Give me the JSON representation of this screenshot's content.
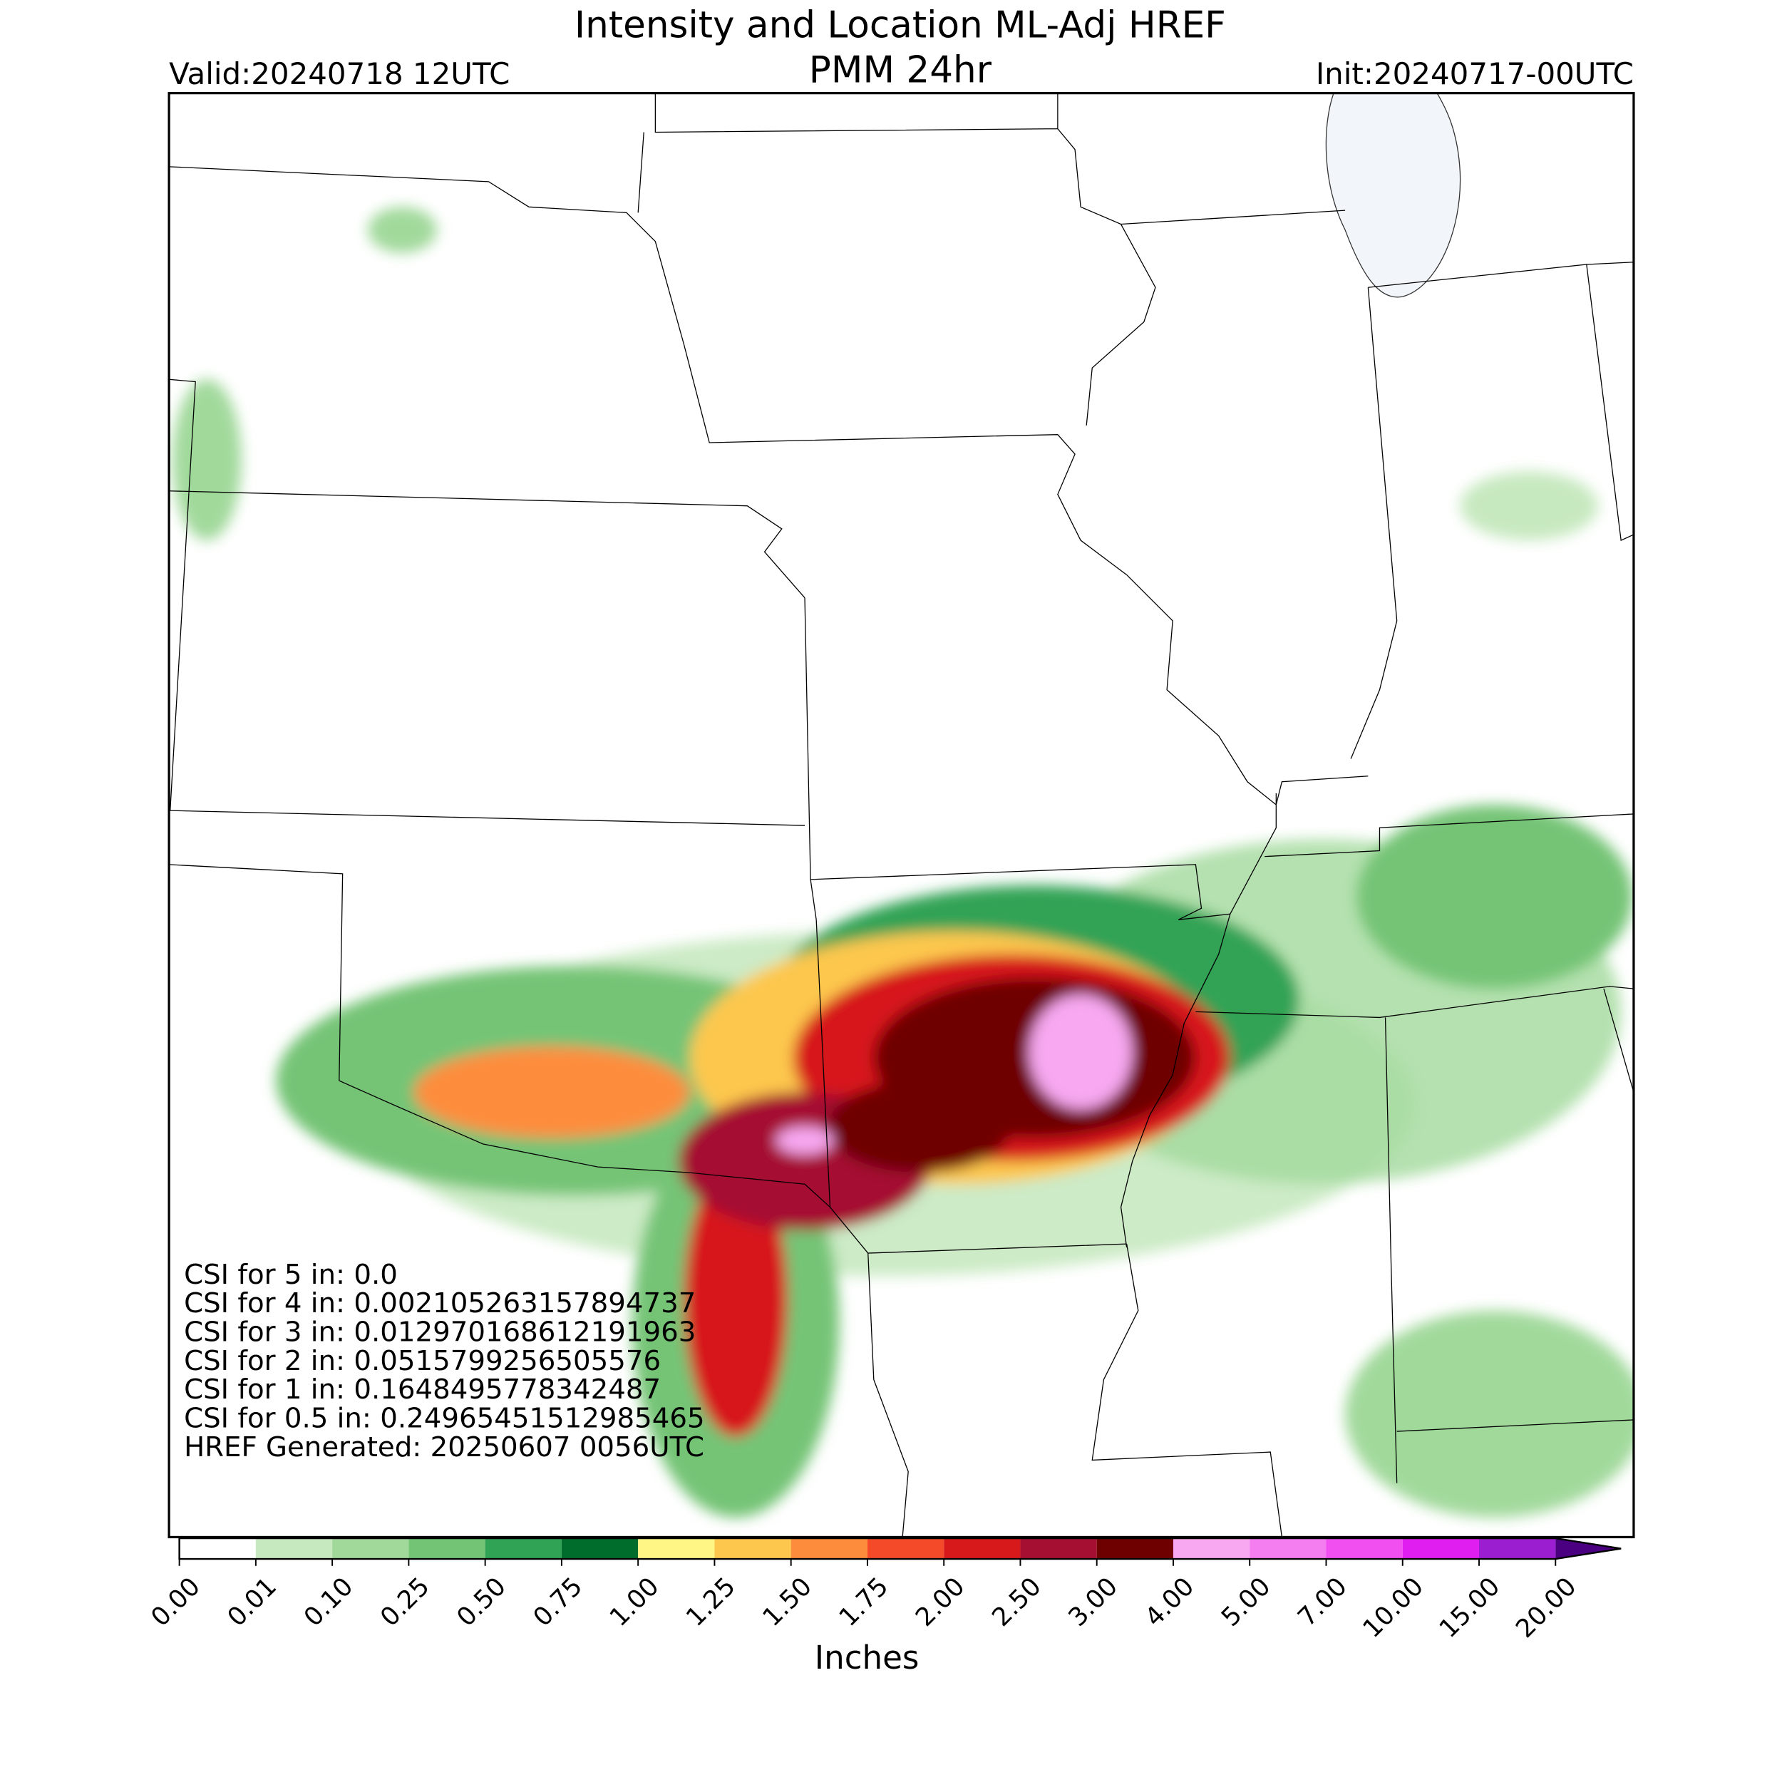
{
  "header": {
    "title": "Intensity and Location ML-Adj HREF",
    "subtitle": "PMM 24hr",
    "valid": "Valid:20240718 12UTC",
    "init": "Init:20240717-00UTC"
  },
  "annotations": [
    "CSI for 5 in: 0.0",
    "CSI for 4 in: 0.002105263157894737",
    "CSI for 3 in: 0.012970168612191963",
    "CSI for 2 in: 0.0515799256505576",
    "CSI for 1 in: 0.1648495778342487",
    "CSI for 0.5 in: 0.24965451512985465",
    "HREF Generated: 20250607 0056UTC"
  ],
  "colorbar": {
    "label": "Inches",
    "ticks": [
      {
        "value": 0,
        "label": "0.00"
      },
      {
        "value": 0.01,
        "label": "0.01"
      },
      {
        "value": 0.1,
        "label": "0.10"
      },
      {
        "value": 0.25,
        "label": "0.25"
      },
      {
        "value": 0.5,
        "label": "0.50"
      },
      {
        "value": 0.75,
        "label": "0.75"
      },
      {
        "value": 1,
        "label": "1.00"
      },
      {
        "value": 1.25,
        "label": "1.25"
      },
      {
        "value": 1.5,
        "label": "1.50"
      },
      {
        "value": 1.75,
        "label": "1.75"
      },
      {
        "value": 2,
        "label": "2.00"
      },
      {
        "value": 2.5,
        "label": "2.50"
      },
      {
        "value": 3,
        "label": "3.00"
      },
      {
        "value": 4,
        "label": "4.00"
      },
      {
        "value": 5,
        "label": "5.00"
      },
      {
        "value": 7,
        "label": "7.00"
      },
      {
        "value": 10,
        "label": "10.00"
      },
      {
        "value": 15,
        "label": "15.00"
      },
      {
        "value": 20,
        "label": "20.00"
      }
    ],
    "colors": [
      "#ffffff",
      "#c7e9c0",
      "#a1d99b",
      "#74c476",
      "#31a354",
      "#006d2c",
      "#fff685",
      "#fdc74d",
      "#fd8d3c",
      "#f44a29",
      "#d7191c",
      "#a50f32",
      "#6e0000",
      "#f7a8f0",
      "#f47ef0",
      "#f24ff0",
      "#e01ef0",
      "#9b1fd0"
    ],
    "over_color": "#4b0082"
  }
}
